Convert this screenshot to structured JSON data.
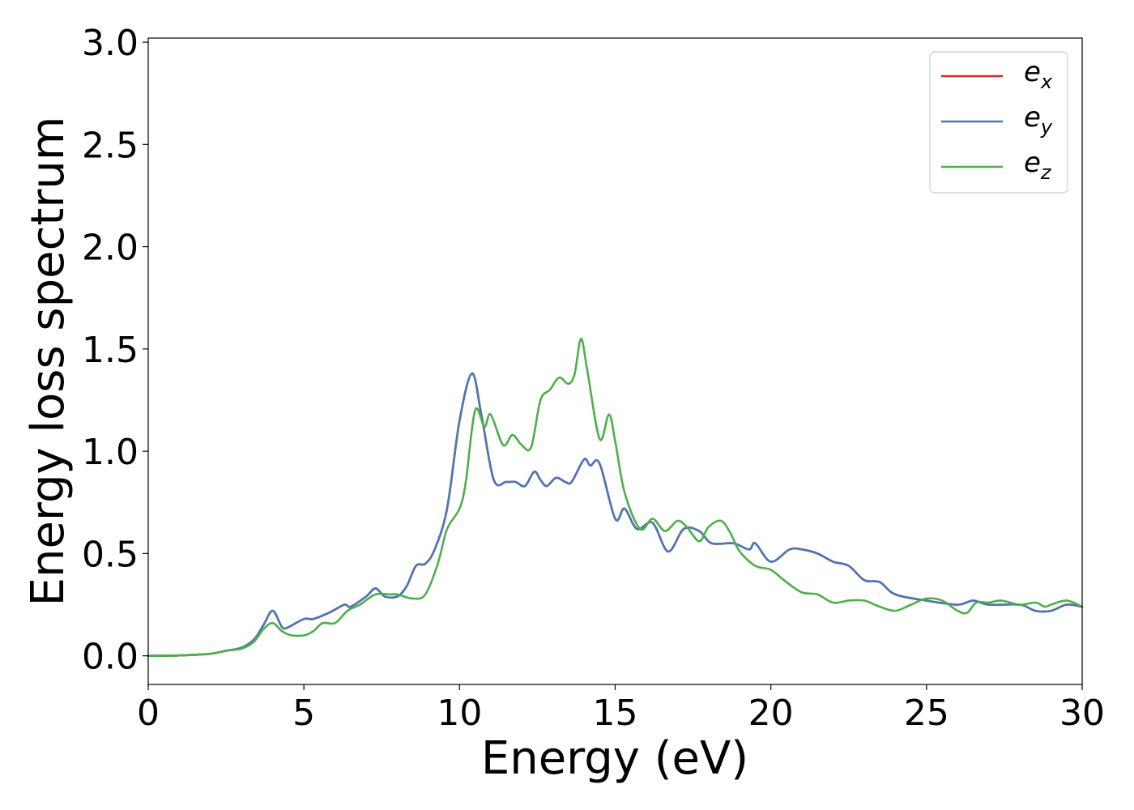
{
  "chart_data": {
    "type": "line",
    "title": "",
    "xlabel": "Energy (eV)",
    "ylabel": "Energy loss spectrum",
    "xlim": [
      0,
      30
    ],
    "ylim": [
      -0.14,
      3.02
    ],
    "xticks": [
      0,
      5,
      10,
      15,
      20,
      25,
      30
    ],
    "xtick_labels": [
      "0",
      "5",
      "10",
      "15",
      "20",
      "25",
      "30"
    ],
    "yticks": [
      0.0,
      0.5,
      1.0,
      1.5,
      2.0,
      2.5,
      3.0
    ],
    "ytick_labels": [
      "0.0",
      "0.5",
      "1.0",
      "1.5",
      "2.0",
      "2.5",
      "3.0"
    ],
    "grid": false,
    "legend_position": "top-right",
    "series": [
      {
        "name": "e_x",
        "label_base": "e",
        "label_sub": "x",
        "color": "#d62728",
        "points": [
          [
            0,
            0
          ],
          [
            1,
            0.002
          ],
          [
            2,
            0.01
          ],
          [
            2.5,
            0.025
          ],
          [
            3,
            0.04
          ],
          [
            3.4,
            0.08
          ],
          [
            3.7,
            0.15
          ],
          [
            4,
            0.22
          ],
          [
            4.3,
            0.14
          ],
          [
            4.5,
            0.14
          ],
          [
            5,
            0.18
          ],
          [
            5.3,
            0.18
          ],
          [
            5.8,
            0.21
          ],
          [
            6.3,
            0.25
          ],
          [
            6.5,
            0.24
          ],
          [
            7,
            0.29
          ],
          [
            7.3,
            0.33
          ],
          [
            7.6,
            0.29
          ],
          [
            8,
            0.29
          ],
          [
            8.3,
            0.34
          ],
          [
            8.6,
            0.44
          ],
          [
            8.9,
            0.45
          ],
          [
            9.2,
            0.52
          ],
          [
            9.6,
            0.72
          ],
          [
            10,
            1.15
          ],
          [
            10.4,
            1.38
          ],
          [
            10.7,
            1.18
          ],
          [
            11.1,
            0.86
          ],
          [
            11.5,
            0.85
          ],
          [
            11.8,
            0.85
          ],
          [
            12.1,
            0.83
          ],
          [
            12.4,
            0.9
          ],
          [
            12.6,
            0.86
          ],
          [
            12.8,
            0.83
          ],
          [
            13.1,
            0.87
          ],
          [
            13.4,
            0.85
          ],
          [
            13.6,
            0.85
          ],
          [
            14,
            0.96
          ],
          [
            14.2,
            0.93
          ],
          [
            14.5,
            0.94
          ],
          [
            15,
            0.67
          ],
          [
            15.3,
            0.72
          ],
          [
            15.7,
            0.62
          ],
          [
            16.2,
            0.65
          ],
          [
            16.7,
            0.51
          ],
          [
            17.2,
            0.62
          ],
          [
            17.7,
            0.61
          ],
          [
            18.1,
            0.55
          ],
          [
            18.8,
            0.55
          ],
          [
            19.3,
            0.52
          ],
          [
            19.5,
            0.55
          ],
          [
            20,
            0.46
          ],
          [
            20.6,
            0.52
          ],
          [
            21,
            0.52
          ],
          [
            21.5,
            0.5
          ],
          [
            22,
            0.46
          ],
          [
            22.5,
            0.44
          ],
          [
            23,
            0.37
          ],
          [
            23.5,
            0.36
          ],
          [
            24,
            0.3
          ],
          [
            25,
            0.27
          ],
          [
            26,
            0.25
          ],
          [
            26.5,
            0.27
          ],
          [
            27,
            0.25
          ],
          [
            28,
            0.25
          ],
          [
            28.5,
            0.22
          ],
          [
            29,
            0.22
          ],
          [
            29.5,
            0.25
          ],
          [
            30,
            0.24
          ]
        ]
      },
      {
        "name": "e_y",
        "label_base": "e",
        "label_sub": "y",
        "color": "#4878b5",
        "points": [
          [
            0,
            0
          ],
          [
            1,
            0.002
          ],
          [
            2,
            0.01
          ],
          [
            2.5,
            0.025
          ],
          [
            3,
            0.04
          ],
          [
            3.4,
            0.08
          ],
          [
            3.7,
            0.15
          ],
          [
            4,
            0.22
          ],
          [
            4.3,
            0.14
          ],
          [
            4.5,
            0.14
          ],
          [
            5,
            0.18
          ],
          [
            5.3,
            0.18
          ],
          [
            5.8,
            0.21
          ],
          [
            6.3,
            0.25
          ],
          [
            6.5,
            0.24
          ],
          [
            7,
            0.29
          ],
          [
            7.3,
            0.33
          ],
          [
            7.6,
            0.29
          ],
          [
            8,
            0.29
          ],
          [
            8.3,
            0.34
          ],
          [
            8.6,
            0.44
          ],
          [
            8.9,
            0.45
          ],
          [
            9.2,
            0.52
          ],
          [
            9.6,
            0.72
          ],
          [
            10,
            1.15
          ],
          [
            10.4,
            1.38
          ],
          [
            10.7,
            1.18
          ],
          [
            11.1,
            0.86
          ],
          [
            11.5,
            0.85
          ],
          [
            11.8,
            0.85
          ],
          [
            12.1,
            0.83
          ],
          [
            12.4,
            0.9
          ],
          [
            12.6,
            0.86
          ],
          [
            12.8,
            0.83
          ],
          [
            13.1,
            0.87
          ],
          [
            13.4,
            0.85
          ],
          [
            13.6,
            0.85
          ],
          [
            14,
            0.96
          ],
          [
            14.2,
            0.93
          ],
          [
            14.5,
            0.94
          ],
          [
            15,
            0.67
          ],
          [
            15.3,
            0.72
          ],
          [
            15.7,
            0.62
          ],
          [
            16.2,
            0.65
          ],
          [
            16.7,
            0.51
          ],
          [
            17.2,
            0.62
          ],
          [
            17.7,
            0.61
          ],
          [
            18.1,
            0.55
          ],
          [
            18.8,
            0.55
          ],
          [
            19.3,
            0.52
          ],
          [
            19.5,
            0.55
          ],
          [
            20,
            0.46
          ],
          [
            20.6,
            0.52
          ],
          [
            21,
            0.52
          ],
          [
            21.5,
            0.5
          ],
          [
            22,
            0.46
          ],
          [
            22.5,
            0.44
          ],
          [
            23,
            0.37
          ],
          [
            23.5,
            0.36
          ],
          [
            24,
            0.3
          ],
          [
            25,
            0.27
          ],
          [
            26,
            0.25
          ],
          [
            26.5,
            0.27
          ],
          [
            27,
            0.25
          ],
          [
            28,
            0.25
          ],
          [
            28.5,
            0.22
          ],
          [
            29,
            0.22
          ],
          [
            29.5,
            0.25
          ],
          [
            30,
            0.24
          ]
        ]
      },
      {
        "name": "e_z",
        "label_base": "e",
        "label_sub": "z",
        "color": "#4daf4a",
        "points": [
          [
            0,
            0
          ],
          [
            1,
            0.002
          ],
          [
            2,
            0.01
          ],
          [
            2.5,
            0.025
          ],
          [
            3,
            0.035
          ],
          [
            3.4,
            0.07
          ],
          [
            3.7,
            0.13
          ],
          [
            4,
            0.16
          ],
          [
            4.3,
            0.12
          ],
          [
            4.6,
            0.1
          ],
          [
            5,
            0.1
          ],
          [
            5.3,
            0.12
          ],
          [
            5.6,
            0.16
          ],
          [
            6,
            0.16
          ],
          [
            6.4,
            0.22
          ],
          [
            6.8,
            0.25
          ],
          [
            7.3,
            0.3
          ],
          [
            7.8,
            0.3
          ],
          [
            8,
            0.3
          ],
          [
            8.5,
            0.28
          ],
          [
            8.9,
            0.3
          ],
          [
            9.3,
            0.45
          ],
          [
            9.6,
            0.62
          ],
          [
            10,
            0.72
          ],
          [
            10.2,
            0.85
          ],
          [
            10.5,
            1.2
          ],
          [
            10.8,
            1.12
          ],
          [
            11,
            1.18
          ],
          [
            11.4,
            1.03
          ],
          [
            11.7,
            1.08
          ],
          [
            12,
            1.03
          ],
          [
            12.3,
            1.02
          ],
          [
            12.6,
            1.25
          ],
          [
            12.9,
            1.3
          ],
          [
            13.2,
            1.36
          ],
          [
            13.5,
            1.33
          ],
          [
            13.7,
            1.38
          ],
          [
            13.9,
            1.55
          ],
          [
            14.1,
            1.4
          ],
          [
            14.5,
            1.06
          ],
          [
            14.8,
            1.18
          ],
          [
            15,
            1.05
          ],
          [
            15.3,
            0.8
          ],
          [
            15.8,
            0.62
          ],
          [
            16.2,
            0.67
          ],
          [
            16.6,
            0.61
          ],
          [
            17,
            0.66
          ],
          [
            17.3,
            0.63
          ],
          [
            17.7,
            0.56
          ],
          [
            18,
            0.63
          ],
          [
            18.4,
            0.66
          ],
          [
            18.7,
            0.6
          ],
          [
            19,
            0.51
          ],
          [
            19.5,
            0.44
          ],
          [
            20,
            0.42
          ],
          [
            20.5,
            0.36
          ],
          [
            21,
            0.31
          ],
          [
            21.5,
            0.3
          ],
          [
            22,
            0.26
          ],
          [
            22.5,
            0.27
          ],
          [
            23,
            0.27
          ],
          [
            23.5,
            0.24
          ],
          [
            24,
            0.22
          ],
          [
            24.5,
            0.25
          ],
          [
            25,
            0.28
          ],
          [
            25.5,
            0.27
          ],
          [
            26,
            0.22
          ],
          [
            26.3,
            0.21
          ],
          [
            26.6,
            0.26
          ],
          [
            27,
            0.26
          ],
          [
            27.4,
            0.27
          ],
          [
            28,
            0.25
          ],
          [
            28.5,
            0.26
          ],
          [
            28.8,
            0.24
          ],
          [
            29,
            0.25
          ],
          [
            29.5,
            0.27
          ],
          [
            30,
            0.24
          ]
        ]
      }
    ]
  }
}
